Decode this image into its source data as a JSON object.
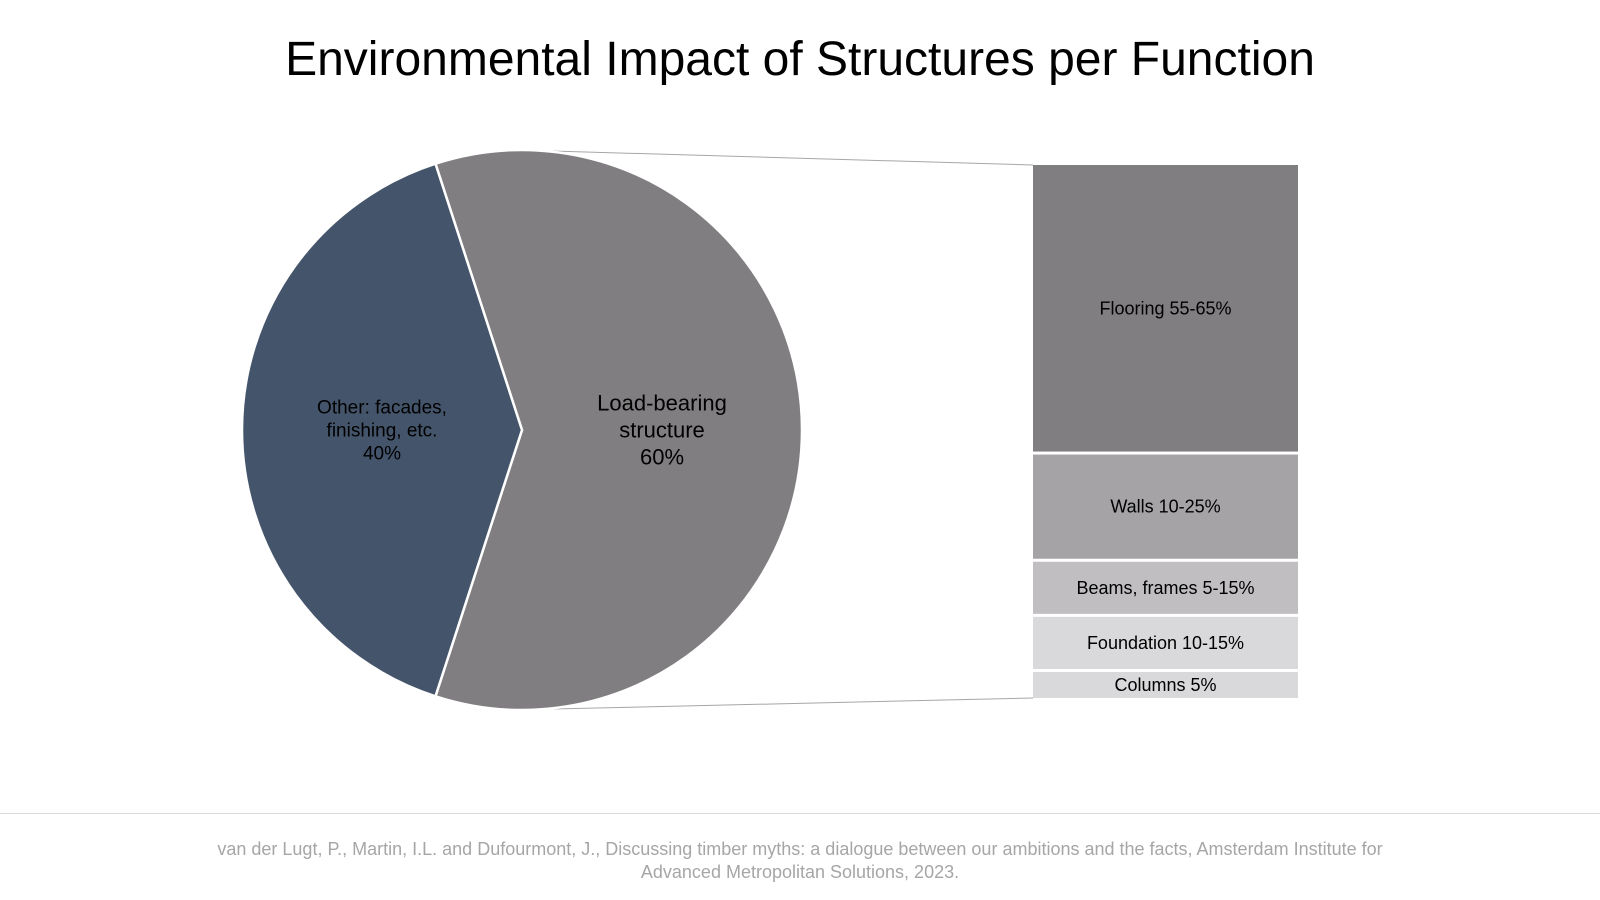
{
  "chart_data": {
    "type": "pie",
    "title": "Environmental Impact of Structures per Function",
    "slices": [
      {
        "label_lines": [
          "Load-bearing",
          "structure",
          "60%"
        ],
        "value": 60,
        "color": "#807E80"
      },
      {
        "label_lines": [
          "Other: facades,",
          "finishing, etc.",
          "40%"
        ],
        "value": 40,
        "color": "#44546A"
      }
    ],
    "breakdown": {
      "of_slice": "Load-bearing structure",
      "segments": [
        {
          "label": "Flooring 55-65%",
          "value": 55,
          "color": "#807E80"
        },
        {
          "label": "Walls 10-25%",
          "value": 20,
          "color": "#A5A3A6"
        },
        {
          "label": "Beams, frames 5-15%",
          "value": 10,
          "color": "#C0BEC1"
        },
        {
          "label": "Foundation 10-15%",
          "value": 10,
          "color": "#D9D8DA"
        },
        {
          "label": "Columns 5%",
          "value": 5,
          "color": "#D9D8DA"
        }
      ]
    }
  },
  "footer": {
    "citation": "van der Lugt, P., Martin, I.L. and Dufourmont, J., Discussing timber myths: a dialogue between our ambitions and the facts, Amsterdam Institute for Advanced Metropolitan Solutions, 2023."
  }
}
